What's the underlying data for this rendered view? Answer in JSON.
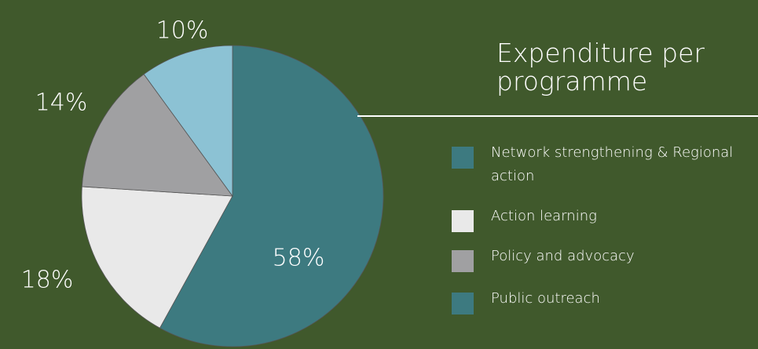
{
  "chart_data": {
    "type": "pie",
    "title": "Expenditure per programme",
    "categories": [
      "Network strengthening & Regional action",
      "Action learning",
      "Policy and advocacy",
      "Public outreach"
    ],
    "values": [
      58,
      18,
      14,
      10
    ],
    "value_labels": [
      "58%",
      "18%",
      "14%",
      "10%"
    ],
    "colors": [
      "#3d7a80",
      "#e9e9e9",
      "#a0a0a2",
      "#8cc2d4"
    ],
    "legend_colors": [
      "#3d7a80",
      "#e9e9e9",
      "#a0a0a2",
      "#3d7a80"
    ]
  }
}
